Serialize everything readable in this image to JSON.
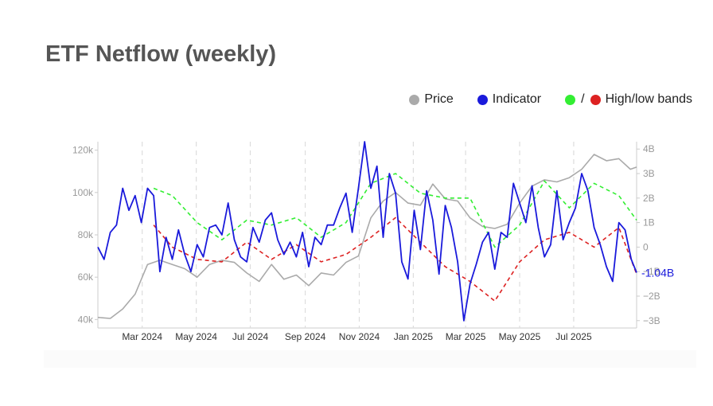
{
  "title": "ETF Netflow (weekly)",
  "legend": {
    "price_label": "Price",
    "indicator_label": "Indicator",
    "bands_label": "High/low bands",
    "slash": "/"
  },
  "colors": {
    "price": "#aaaaaa",
    "indicator": "#1a1adb",
    "high_band": "#33ee33",
    "low_band": "#dd2222",
    "grid": "#dddddd",
    "axis_text": "#999999"
  },
  "chart_data": {
    "type": "line",
    "title": "ETF Netflow (weekly)",
    "x_range": [
      "2024-01-11",
      "2025-09-10"
    ],
    "x_tick_labels": [
      {
        "label": "Mar 2024",
        "date": "2024-03-01"
      },
      {
        "label": "May 2024",
        "date": "2024-05-01"
      },
      {
        "label": "Jul 2024",
        "date": "2024-07-01"
      },
      {
        "label": "Sep 2024",
        "date": "2024-09-01"
      },
      {
        "label": "Nov 2024",
        "date": "2024-11-01"
      },
      {
        "label": "Jan 2025",
        "date": "2025-01-01"
      },
      {
        "label": "Mar 2025",
        "date": "2025-03-01"
      },
      {
        "label": "May 2025",
        "date": "2025-05-01"
      },
      {
        "label": "Jul 2025",
        "date": "2025-07-01"
      }
    ],
    "y_left": {
      "ticks": [
        40000,
        60000,
        80000,
        100000,
        120000
      ],
      "tick_labels": [
        "40k",
        "60k",
        "80k",
        "100k",
        "120k"
      ],
      "range": [
        36000,
        124000
      ]
    },
    "y_right": {
      "ticks": [
        -3,
        -2,
        -1,
        0,
        1,
        2,
        3,
        4
      ],
      "tick_labels": [
        "−3B",
        "−2B",
        "−1B",
        "0",
        "1B",
        "2B",
        "3B",
        "4B"
      ],
      "range": [
        -3.3,
        4.3
      ],
      "last_value_label": "-1.04B"
    },
    "series": [
      {
        "name": "Price",
        "axis": "left",
        "points": [
          [
            "2024-01-11",
            41000
          ],
          [
            "2024-01-25",
            40500
          ],
          [
            "2024-02-08",
            45000
          ],
          [
            "2024-02-22",
            52000
          ],
          [
            "2024-03-07",
            66000
          ],
          [
            "2024-03-21",
            68000
          ],
          [
            "2024-04-04",
            66000
          ],
          [
            "2024-04-18",
            64000
          ],
          [
            "2024-05-02",
            60000
          ],
          [
            "2024-05-16",
            66000
          ],
          [
            "2024-05-30",
            68000
          ],
          [
            "2024-06-13",
            67000
          ],
          [
            "2024-06-27",
            62000
          ],
          [
            "2024-07-11",
            58000
          ],
          [
            "2024-07-25",
            66000
          ],
          [
            "2024-08-08",
            59000
          ],
          [
            "2024-08-22",
            61000
          ],
          [
            "2024-09-05",
            56000
          ],
          [
            "2024-09-19",
            62000
          ],
          [
            "2024-10-03",
            61000
          ],
          [
            "2024-10-17",
            67000
          ],
          [
            "2024-10-31",
            70000
          ],
          [
            "2024-11-14",
            88000
          ],
          [
            "2024-11-28",
            96000
          ],
          [
            "2024-12-12",
            100000
          ],
          [
            "2024-12-26",
            95000
          ],
          [
            "2025-01-09",
            94000
          ],
          [
            "2025-01-23",
            104000
          ],
          [
            "2025-02-06",
            97000
          ],
          [
            "2025-02-20",
            96000
          ],
          [
            "2025-03-06",
            88000
          ],
          [
            "2025-03-20",
            84000
          ],
          [
            "2025-04-03",
            83000
          ],
          [
            "2025-04-17",
            85000
          ],
          [
            "2025-05-01",
            95000
          ],
          [
            "2025-05-15",
            103000
          ],
          [
            "2025-05-29",
            106000
          ],
          [
            "2025-06-12",
            105000
          ],
          [
            "2025-06-26",
            107000
          ],
          [
            "2025-07-10",
            111000
          ],
          [
            "2025-07-24",
            118000
          ],
          [
            "2025-08-07",
            115000
          ],
          [
            "2025-08-21",
            116000
          ],
          [
            "2025-09-03",
            111000
          ],
          [
            "2025-09-10",
            112000
          ]
        ]
      },
      {
        "name": "Indicator",
        "axis": "right",
        "points": [
          [
            "2024-01-11",
            0.0
          ],
          [
            "2024-01-18",
            -0.5
          ],
          [
            "2024-01-25",
            0.6
          ],
          [
            "2024-02-01",
            0.9
          ],
          [
            "2024-02-08",
            2.4
          ],
          [
            "2024-02-15",
            1.5
          ],
          [
            "2024-02-22",
            2.1
          ],
          [
            "2024-02-29",
            1.0
          ],
          [
            "2024-03-07",
            2.4
          ],
          [
            "2024-03-14",
            2.1
          ],
          [
            "2024-03-21",
            -1.0
          ],
          [
            "2024-03-28",
            0.4
          ],
          [
            "2024-04-04",
            -0.5
          ],
          [
            "2024-04-11",
            0.7
          ],
          [
            "2024-04-18",
            -0.3
          ],
          [
            "2024-04-25",
            -1.0
          ],
          [
            "2024-05-02",
            0.1
          ],
          [
            "2024-05-09",
            -0.4
          ],
          [
            "2024-05-16",
            0.8
          ],
          [
            "2024-05-23",
            0.9
          ],
          [
            "2024-05-30",
            0.5
          ],
          [
            "2024-06-06",
            1.8
          ],
          [
            "2024-06-13",
            0.3
          ],
          [
            "2024-06-20",
            -0.4
          ],
          [
            "2024-06-27",
            -0.6
          ],
          [
            "2024-07-04",
            0.8
          ],
          [
            "2024-07-11",
            0.2
          ],
          [
            "2024-07-18",
            1.1
          ],
          [
            "2024-07-25",
            1.4
          ],
          [
            "2024-08-01",
            0.3
          ],
          [
            "2024-08-08",
            -0.3
          ],
          [
            "2024-08-15",
            0.2
          ],
          [
            "2024-08-22",
            -0.4
          ],
          [
            "2024-08-29",
            0.6
          ],
          [
            "2024-09-05",
            -0.8
          ],
          [
            "2024-09-12",
            0.4
          ],
          [
            "2024-09-19",
            0.1
          ],
          [
            "2024-09-26",
            0.9
          ],
          [
            "2024-10-03",
            0.9
          ],
          [
            "2024-10-10",
            1.6
          ],
          [
            "2024-10-17",
            2.2
          ],
          [
            "2024-10-24",
            0.6
          ],
          [
            "2024-10-31",
            2.4
          ],
          [
            "2024-11-07",
            4.3
          ],
          [
            "2024-11-14",
            2.4
          ],
          [
            "2024-11-21",
            3.3
          ],
          [
            "2024-11-28",
            0.4
          ],
          [
            "2024-12-05",
            3.0
          ],
          [
            "2024-12-12",
            2.2
          ],
          [
            "2024-12-19",
            -0.6
          ],
          [
            "2024-12-26",
            -1.3
          ],
          [
            "2025-01-02",
            1.5
          ],
          [
            "2025-01-09",
            -0.1
          ],
          [
            "2025-01-16",
            2.3
          ],
          [
            "2025-01-23",
            1.1
          ],
          [
            "2025-01-30",
            -1.1
          ],
          [
            "2025-02-06",
            1.7
          ],
          [
            "2025-02-13",
            0.8
          ],
          [
            "2025-02-20",
            -0.6
          ],
          [
            "2025-02-27",
            -3.0
          ],
          [
            "2025-03-06",
            -1.5
          ],
          [
            "2025-03-13",
            -0.7
          ],
          [
            "2025-03-20",
            0.2
          ],
          [
            "2025-03-27",
            0.6
          ],
          [
            "2025-04-03",
            -0.9
          ],
          [
            "2025-04-10",
            0.6
          ],
          [
            "2025-04-17",
            0.4
          ],
          [
            "2025-04-24",
            2.6
          ],
          [
            "2025-05-01",
            1.8
          ],
          [
            "2025-05-08",
            1.0
          ],
          [
            "2025-05-15",
            2.5
          ],
          [
            "2025-05-22",
            0.8
          ],
          [
            "2025-05-29",
            -0.4
          ],
          [
            "2025-06-05",
            0.1
          ],
          [
            "2025-06-12",
            2.3
          ],
          [
            "2025-06-19",
            0.3
          ],
          [
            "2025-06-26",
            1.0
          ],
          [
            "2025-07-03",
            1.6
          ],
          [
            "2025-07-10",
            3.0
          ],
          [
            "2025-07-17",
            2.3
          ],
          [
            "2025-07-24",
            0.8
          ],
          [
            "2025-07-31",
            0.1
          ],
          [
            "2025-08-07",
            -0.8
          ],
          [
            "2025-08-14",
            -1.4
          ],
          [
            "2025-08-21",
            1.0
          ],
          [
            "2025-08-28",
            0.7
          ],
          [
            "2025-09-04",
            -0.5
          ],
          [
            "2025-09-10",
            -1.04
          ]
        ]
      },
      {
        "name": "High band",
        "axis": "right",
        "points": [
          [
            "2024-03-14",
            2.4
          ],
          [
            "2024-04-04",
            2.1
          ],
          [
            "2024-05-02",
            1.0
          ],
          [
            "2024-05-30",
            0.3
          ],
          [
            "2024-06-27",
            1.1
          ],
          [
            "2024-07-25",
            0.9
          ],
          [
            "2024-08-22",
            1.2
          ],
          [
            "2024-09-19",
            0.4
          ],
          [
            "2024-10-17",
            1.0
          ],
          [
            "2024-11-14",
            2.6
          ],
          [
            "2024-12-12",
            3.0
          ],
          [
            "2025-01-09",
            2.2
          ],
          [
            "2025-02-06",
            2.0
          ],
          [
            "2025-03-06",
            2.0
          ],
          [
            "2025-04-03",
            0.0
          ],
          [
            "2025-05-01",
            0.9
          ],
          [
            "2025-05-29",
            2.7
          ],
          [
            "2025-06-26",
            1.6
          ],
          [
            "2025-07-24",
            2.6
          ],
          [
            "2025-08-21",
            2.1
          ],
          [
            "2025-09-10",
            1.1
          ]
        ]
      },
      {
        "name": "Low band",
        "axis": "right",
        "points": [
          [
            "2024-03-14",
            0.9
          ],
          [
            "2024-04-04",
            0.0
          ],
          [
            "2024-05-02",
            -0.5
          ],
          [
            "2024-05-30",
            -0.6
          ],
          [
            "2024-06-27",
            0.2
          ],
          [
            "2024-07-25",
            -0.5
          ],
          [
            "2024-08-22",
            0.1
          ],
          [
            "2024-09-19",
            -0.6
          ],
          [
            "2024-10-17",
            -0.3
          ],
          [
            "2024-11-14",
            0.4
          ],
          [
            "2024-12-12",
            1.2
          ],
          [
            "2025-01-09",
            0.2
          ],
          [
            "2025-02-06",
            -0.8
          ],
          [
            "2025-03-06",
            -1.4
          ],
          [
            "2025-04-03",
            -2.2
          ],
          [
            "2025-05-01",
            -0.6
          ],
          [
            "2025-05-29",
            0.3
          ],
          [
            "2025-06-26",
            0.6
          ],
          [
            "2025-07-24",
            0.0
          ],
          [
            "2025-08-21",
            0.8
          ],
          [
            "2025-09-10",
            -1.1
          ]
        ]
      }
    ],
    "grid": "vertical dashed lines at month ticks",
    "legend_position": "top-right"
  }
}
